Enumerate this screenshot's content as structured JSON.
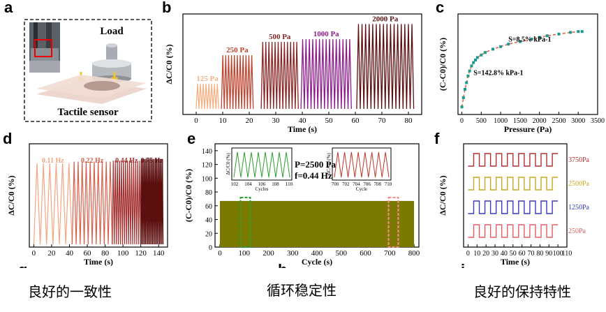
{
  "panel_labels": {
    "a": "a",
    "b": "b",
    "c": "c",
    "d": "d",
    "e": "e",
    "f": "f",
    "g": "g",
    "h": "h",
    "i": "i"
  },
  "captions": {
    "left": "良好的一致性",
    "middle": "循环稳定性",
    "right": "良好的保持特性"
  },
  "panel_a": {
    "load_label": "Load",
    "sensor_label": "Tactile sensor"
  },
  "chart_data": [
    {
      "id": "b",
      "type": "line",
      "xlabel": "Time (s)",
      "ylabel": "ΔC/C0 (%)",
      "xlim": [
        -5,
        85
      ],
      "xticks": [
        0,
        10,
        20,
        30,
        40,
        50,
        60,
        70,
        80
      ],
      "yticks_labeled": false,
      "annotations": [
        "125 Pa",
        "250 Pa",
        "500 Pa",
        "1000 Pa",
        "2000 Pa"
      ],
      "series": [
        {
          "name": "125 Pa",
          "t_start": 0,
          "t_end": 8.5,
          "peak": 0.28,
          "color": "#f4b184",
          "cycles": 8
        },
        {
          "name": "250 Pa",
          "t_start": 9.5,
          "t_end": 21.5,
          "peak": 0.6,
          "color": "#c0432f",
          "cycles": 11
        },
        {
          "name": "500 Pa",
          "t_start": 24.5,
          "t_end": 38.5,
          "peak": 0.75,
          "color": "#8b2424",
          "cycles": 12
        },
        {
          "name": "1000 Pa",
          "t_start": 39.5,
          "t_end": 58.5,
          "peak": 0.78,
          "color": "#8b1a8b",
          "cycles": 15
        },
        {
          "name": "2000 Pa",
          "t_start": 60.5,
          "t_end": 82,
          "peak": 0.95,
          "color": "#5c0f0f",
          "cycles": 16
        }
      ]
    },
    {
      "id": "c",
      "type": "scatter",
      "xlabel": "Pressure (Pa)",
      "ylabel": "(C-C0)/C0 (%)",
      "xlim": [
        -100,
        3500
      ],
      "xticks": [
        0,
        500,
        1000,
        1500,
        2000,
        2500,
        3000,
        3500
      ],
      "yticks_labeled": false,
      "annotations": [
        "S=8.5% kPa-1",
        "S=142.8% kPa-1"
      ],
      "x": [
        0,
        40,
        80,
        120,
        160,
        200,
        250,
        300,
        350,
        400,
        500,
        600,
        800,
        1000,
        1200,
        1500,
        1800,
        2000,
        2200,
        2500,
        2800,
        3000,
        3100
      ],
      "y": [
        0.04,
        0.15,
        0.25,
        0.33,
        0.41,
        0.47,
        0.53,
        0.57,
        0.6,
        0.63,
        0.66,
        0.69,
        0.73,
        0.76,
        0.79,
        0.82,
        0.85,
        0.87,
        0.89,
        0.91,
        0.93,
        0.94,
        0.94
      ],
      "fit_color": "#e55a3c",
      "point_color": "#1a9b8e"
    },
    {
      "id": "d",
      "type": "line",
      "xlabel": "Time (s)",
      "ylabel": "ΔC/C0 (%)",
      "xlim": [
        -5,
        150
      ],
      "xticks": [
        0,
        20,
        40,
        60,
        80,
        100,
        120,
        140
      ],
      "yticks_labeled": false,
      "annotations": [
        "0.11 Hz",
        "0.22 Hz",
        "0.44 Hz",
        "0.75 Hz"
      ],
      "series": [
        {
          "name": "0.11 Hz",
          "t_start": 0,
          "t_end": 43,
          "peak": 0.92,
          "color": "#f4a582",
          "cycles": 6
        },
        {
          "name": "0.22 Hz",
          "t_start": 43,
          "t_end": 88,
          "peak": 0.94,
          "color": "#d6604d",
          "cycles": 10
        },
        {
          "name": "0.44 Hz",
          "t_start": 88,
          "t_end": 120,
          "peak": 0.95,
          "color": "#a33030",
          "cycles": 14
        },
        {
          "name": "0.75 Hz",
          "t_start": 120,
          "t_end": 145,
          "peak": 0.97,
          "color": "#5c0f0f",
          "cycles": 19
        }
      ]
    },
    {
      "id": "e",
      "type": "area",
      "xlabel": "Cycle (s)",
      "ylabel": "(C-C0)/C0 (%)",
      "xlim": [
        -20,
        820
      ],
      "ylim": [
        0,
        150
      ],
      "xticks": [
        0,
        100,
        200,
        300,
        400,
        500,
        600,
        700,
        800
      ],
      "yticks": [
        0,
        20,
        40,
        60,
        80,
        100,
        120,
        140
      ],
      "band_value": 67,
      "band_color": "#7a7a00",
      "annotations": [
        "P=2500 Pa",
        "f=0.44 Hz"
      ],
      "insets": [
        {
          "xlabel": "Cycles",
          "ylabel": "ΔC/C0 (%)",
          "xticks": [
            102,
            104,
            106,
            108,
            110
          ],
          "cycles": 8,
          "color": "#2fa02f"
        },
        {
          "xlabel": "Cycle",
          "ylabel": "ΔC/C0 (%)",
          "xticks": [
            700,
            702,
            704,
            706,
            708,
            710
          ],
          "cycles": 8,
          "color": "#c0392b"
        }
      ]
    },
    {
      "id": "f",
      "type": "line",
      "xlabel": "Time (s)",
      "ylabel": "ΔC/C0 (%)",
      "xlim": [
        -5,
        110
      ],
      "xticks": [
        0,
        10,
        20,
        30,
        40,
        50,
        60,
        70,
        80,
        90,
        100,
        110
      ],
      "yticks_labeled": false,
      "series": [
        {
          "name": "3750Pa",
          "color": "#b03030",
          "offset": 3
        },
        {
          "name": "2500Pa",
          "color": "#c8a820",
          "offset": 2
        },
        {
          "name": "1250Pa",
          "color": "#3a3ab8",
          "offset": 1
        },
        {
          "name": "250Pa",
          "color": "#e06060",
          "offset": 0
        }
      ],
      "steps": 8
    }
  ]
}
